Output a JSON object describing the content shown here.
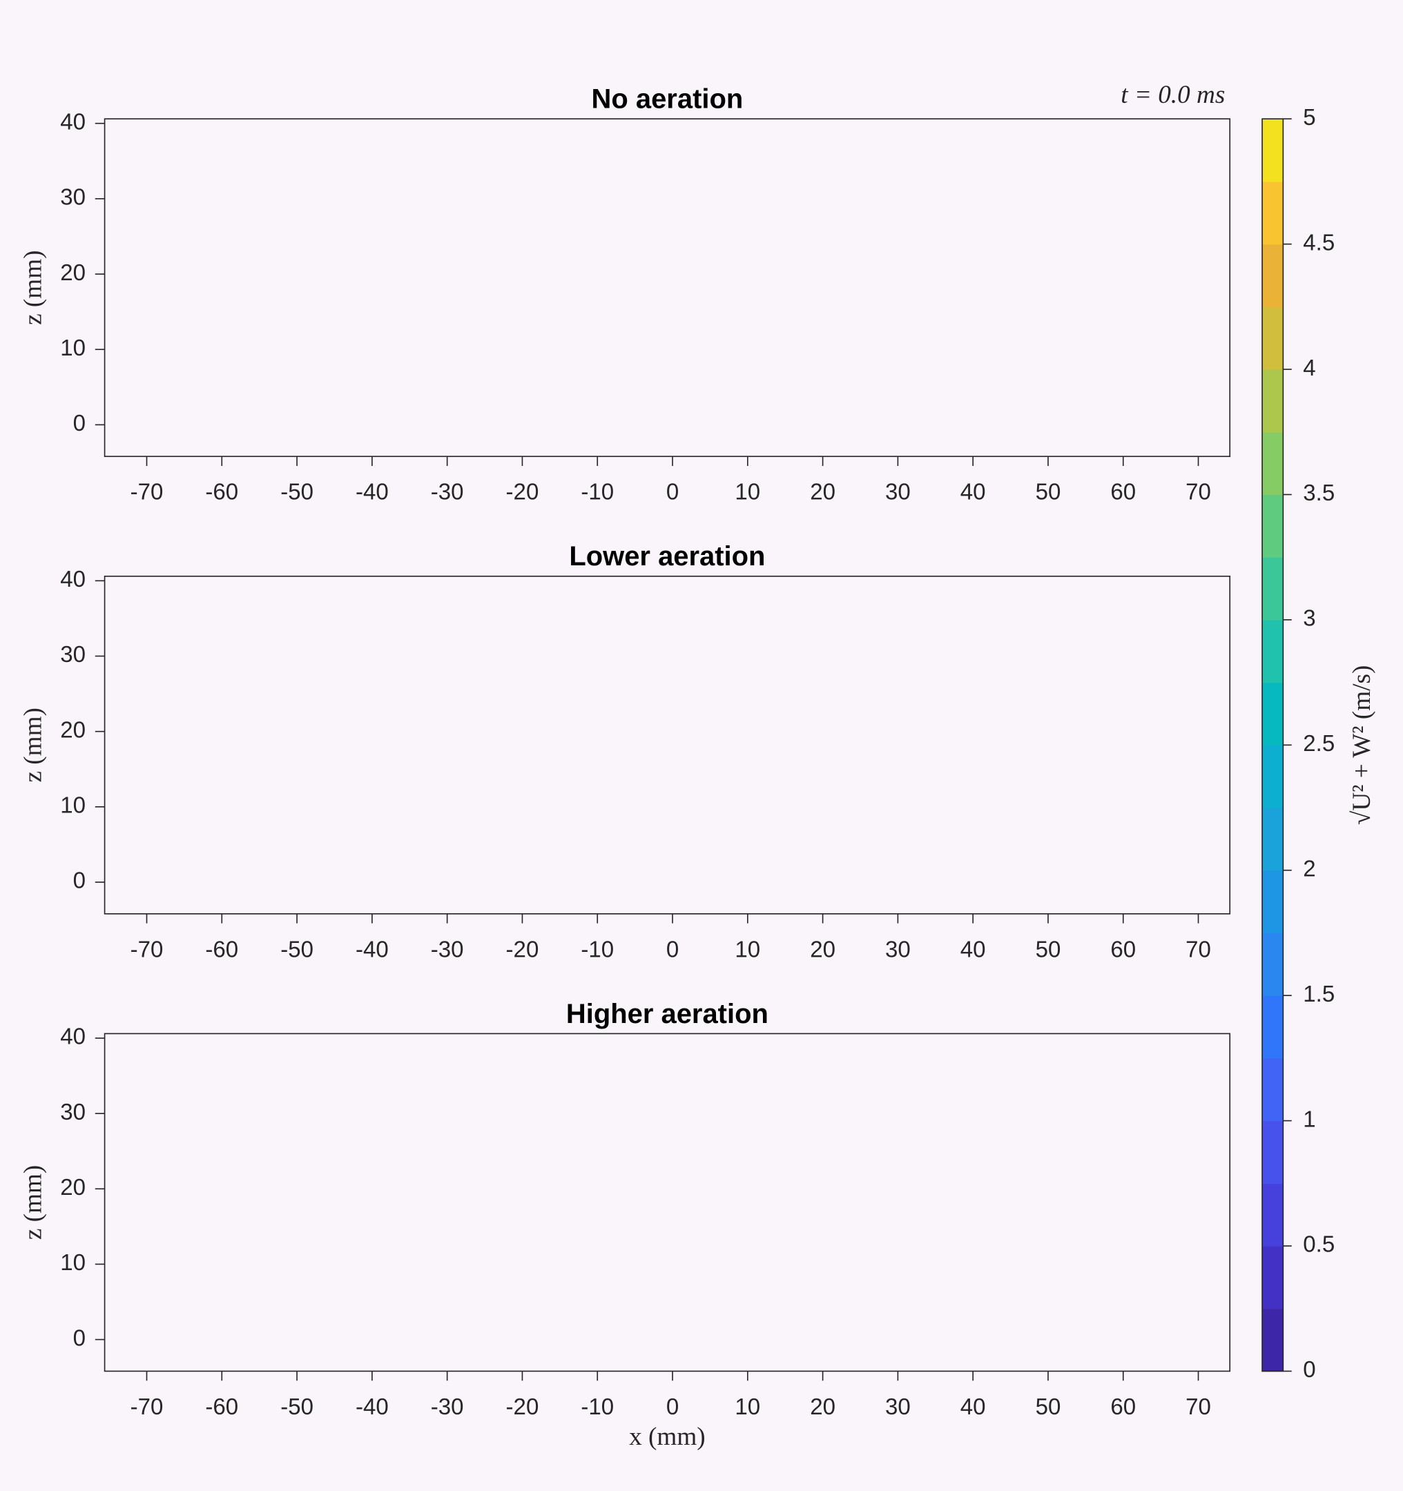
{
  "chart_data": [
    {
      "type": "contour",
      "title": "No aeration",
      "ylabel": "z (mm)",
      "xlim": [
        -75.6,
        74.2
      ],
      "ylim": [
        -4.2,
        40.6
      ],
      "xticks": [
        -70,
        -60,
        -50,
        -40,
        -30,
        -20,
        -10,
        0,
        10,
        20,
        30,
        40,
        50,
        60,
        70
      ],
      "yticks": [
        0,
        10,
        20,
        30,
        40
      ]
    },
    {
      "type": "contour",
      "title": "Lower aeration",
      "ylabel": "z (mm)",
      "xlim": [
        -75.6,
        74.2
      ],
      "ylim": [
        -4.2,
        40.6
      ],
      "xticks": [
        -70,
        -60,
        -50,
        -40,
        -30,
        -20,
        -10,
        0,
        10,
        20,
        30,
        40,
        50,
        60,
        70
      ],
      "yticks": [
        0,
        10,
        20,
        30,
        40
      ]
    },
    {
      "type": "contour",
      "title": "Higher aeration",
      "ylabel": "z (mm)",
      "xlabel": "x (mm)",
      "xlim": [
        -75.6,
        74.2
      ],
      "ylim": [
        -4.2,
        40.6
      ],
      "xticks": [
        -70,
        -60,
        -50,
        -40,
        -30,
        -20,
        -10,
        0,
        10,
        20,
        30,
        40,
        50,
        60,
        70
      ],
      "yticks": [
        0,
        10,
        20,
        30,
        40
      ]
    }
  ],
  "annotation": "t = 0.0 ms",
  "colorbar": {
    "label": "√U² + W² (m/s)",
    "clim": [
      0,
      5
    ],
    "ticks": [
      0,
      0.5,
      1,
      1.5,
      2,
      2.5,
      3,
      3.5,
      4,
      4.5,
      5
    ],
    "colors": [
      "#3d26a8",
      "#4331c6",
      "#4640dc",
      "#4752ec",
      "#4163f6",
      "#2f76fb",
      "#2a87ef",
      "#1f96e4",
      "#1aa3da",
      "#0cafd0",
      "#06b9c0",
      "#20c1ad",
      "#3bc798",
      "#5ecb7f",
      "#86cc64",
      "#adc74c",
      "#d0be3c",
      "#eab337",
      "#f8c530",
      "#f3e01f"
    ]
  }
}
